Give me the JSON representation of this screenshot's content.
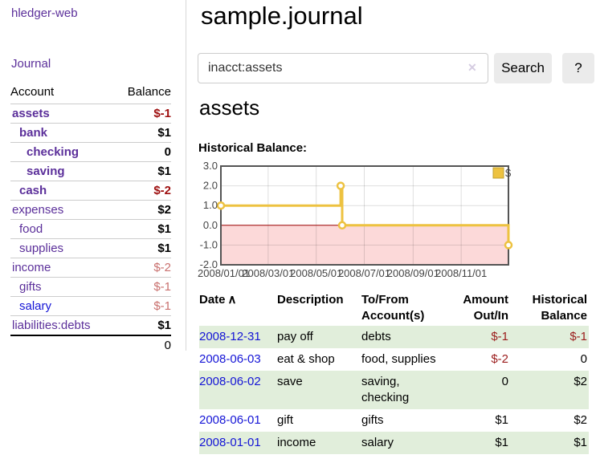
{
  "sidebar": {
    "app_title": "hledger-web",
    "journal_label": "Journal",
    "columns": {
      "account": "Account",
      "balance": "Balance"
    },
    "accounts": [
      {
        "name": "assets",
        "balance": "$-1",
        "indent": 1,
        "bold": true
      },
      {
        "name": "bank",
        "balance": "$1",
        "indent": 2,
        "bold": true
      },
      {
        "name": "checking",
        "balance": "0",
        "indent": 3,
        "bold": true
      },
      {
        "name": "saving",
        "balance": "$1",
        "indent": 3,
        "bold": true
      },
      {
        "name": "cash",
        "balance": "$-2",
        "indent": 2,
        "bold": true
      },
      {
        "name": "expenses",
        "balance": "$2",
        "indent": 1,
        "bold": false
      },
      {
        "name": "food",
        "balance": "$1",
        "indent": 2,
        "bold": false
      },
      {
        "name": "supplies",
        "balance": "$1",
        "indent": 2,
        "bold": false
      },
      {
        "name": "income",
        "balance": "$-2",
        "indent": 1,
        "bold": false
      },
      {
        "name": "gifts",
        "balance": "$-1",
        "indent": 2,
        "bold": false
      },
      {
        "name": "salary",
        "balance": "$-1",
        "indent": 2,
        "bold": false,
        "link_color": "blue"
      },
      {
        "name": "liabilities:debts",
        "balance": "$1",
        "indent": 1,
        "bold": false
      }
    ],
    "total": "0"
  },
  "main": {
    "title": "sample.journal",
    "search": {
      "query": "inacct:assets",
      "clear_icon": "✕",
      "button_label": "Search",
      "help_label": "?"
    },
    "account_heading": "assets"
  },
  "chart_data": {
    "type": "line",
    "title": "Historical Balance:",
    "interpolation": "step",
    "x_range": [
      "2008-01-01",
      "2008-12-31"
    ],
    "ylim": [
      -2.0,
      3.0
    ],
    "y_ticks": [
      3.0,
      2.0,
      1.0,
      0.0,
      -1.0,
      -2.0
    ],
    "x_ticks": [
      {
        "date": "2008-01-01",
        "label": "2008/01/01"
      },
      {
        "date": "2008-03-01",
        "label": "2008/03/01"
      },
      {
        "date": "2008-05-01",
        "label": "2008/05/01"
      },
      {
        "date": "2008-07-01",
        "label": "2008/07/01"
      },
      {
        "date": "2008-09-01",
        "label": "2008/09/01"
      },
      {
        "date": "2008-11-01",
        "label": "2008/11/01"
      }
    ],
    "series": [
      {
        "name": "$",
        "color": "#EDC240",
        "points": [
          [
            "2008-01-01",
            1
          ],
          [
            "2008-06-01",
            2
          ],
          [
            "2008-06-03",
            0
          ],
          [
            "2008-12-31",
            -1
          ]
        ]
      }
    ],
    "legend_position": "top-right",
    "grid": true,
    "negative_region_color": "#fcd9d9",
    "zero_line_color": "#990000"
  },
  "register": {
    "headers": [
      "Date",
      "Description",
      "To/From Account(s)",
      "Amount Out/In",
      "Historical Balance"
    ],
    "sort_icon": "∧",
    "rows": [
      {
        "date": "2008-12-31",
        "description": "pay off",
        "accounts": "debts",
        "amount": "$-1",
        "balance": "$-1"
      },
      {
        "date": "2008-06-03",
        "description": "eat & shop",
        "accounts": "food, supplies",
        "amount": "$-2",
        "balance": "0"
      },
      {
        "date": "2008-06-02",
        "description": "save",
        "accounts": "saving, checking",
        "amount": "0",
        "balance": "$2"
      },
      {
        "date": "2008-06-01",
        "description": "gift",
        "accounts": "gifts",
        "amount": "$1",
        "balance": "$2"
      },
      {
        "date": "2008-01-01",
        "description": "income",
        "accounts": "salary",
        "amount": "$1",
        "balance": "$1"
      }
    ]
  },
  "colors": {
    "link_purple": "#5b2f9a",
    "link_blue": "#1414d6",
    "negative_strong": "#9e0f0f",
    "negative_muted": "#c9706e",
    "register_negative": "#9b1c1c",
    "row_stripe_green": "#e1eedb"
  }
}
